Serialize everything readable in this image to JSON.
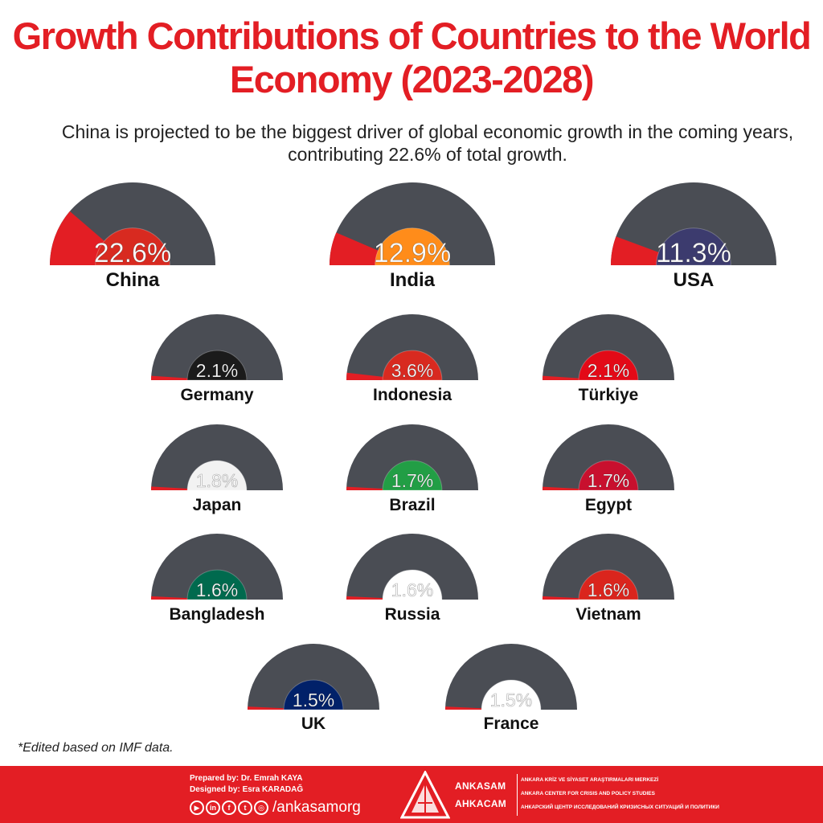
{
  "title": "Growth Contributions of Countries to the World Economy (2023-2028)",
  "subtitle": "China is projected to be the biggest driver of global economic growth in the coming years, contributing 22.6% of total growth.",
  "note": "*Edited based on IMF data.",
  "colors": {
    "accent": "#e31e24",
    "gauge": "#4a4d54",
    "text": "#222222"
  },
  "chart_data": {
    "type": "gauge",
    "unit": "%",
    "categories": [
      "China",
      "India",
      "USA",
      "Germany",
      "Indonesia",
      "Türkiye",
      "Japan",
      "Brazil",
      "Egypt",
      "Bangladesh",
      "Russia",
      "Vietnam",
      "UK",
      "France"
    ],
    "values": [
      22.6,
      12.9,
      11.3,
      2.1,
      3.6,
      2.1,
      1.8,
      1.7,
      1.7,
      1.6,
      1.6,
      1.6,
      1.5,
      1.5
    ],
    "labels": [
      "22.6%",
      "12.9%",
      "11.3%",
      "2.1%",
      "3.6%",
      "2.1%",
      "1.8%",
      "1.7%",
      "1.7%",
      "1.6%",
      "1.6%",
      "1.6%",
      "1.5%",
      "1.5%"
    ],
    "range": [
      0,
      100
    ]
  },
  "footer": {
    "prepared_by": "Prepared by: Dr. Emrah KAYA",
    "designed_by": "Designed by: Esra KARADAĞ",
    "social_icons": [
      "youtube-icon",
      "linkedin-icon",
      "facebook-icon",
      "twitter-icon",
      "instagram-icon"
    ],
    "handle": "/ankasamorg",
    "brand_latin": "ANKASAM",
    "brand_cyrillic": "AHKACAM",
    "org_tr": "ANKARA KRİZ VE SİYASET ARAŞTIRMALARI MERKEZİ",
    "org_en": "ANKARA CENTER FOR CRISIS AND POLICY STUDIES",
    "org_ru": "АНКАРСКИЙ ЦЕНТР ИССЛЕДОВАНИЙ КРИЗИСНЫХ СИТУАЦИЙ И ПОЛИТИКИ"
  }
}
